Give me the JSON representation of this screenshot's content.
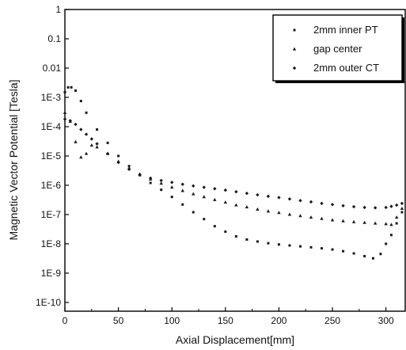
{
  "chart_data": {
    "type": "scatter",
    "title": "",
    "xlabel": "Axial Displacement[mm]",
    "ylabel": "Magnetic Vector Potential [Tesla]",
    "xlim": [
      0,
      318
    ],
    "ylim": [
      1e-11,
      1
    ],
    "y_scale": "log",
    "x_ticks": [
      0,
      50,
      100,
      150,
      200,
      250,
      300
    ],
    "x_tick_labels": [
      "0",
      "50",
      "100",
      "150",
      "200",
      "250",
      "300"
    ],
    "y_ticks": [
      1,
      0.1,
      0.01,
      0.001,
      0.0001,
      1e-05,
      1e-06,
      1e-07,
      1e-08,
      1e-09,
      1e-10
    ],
    "y_tick_labels": [
      "1",
      "0.1",
      "0.01",
      "1E-3",
      "1E-4",
      "1E-5",
      "1E-6",
      "1E-7",
      "1E-8",
      "1E-9",
      "1E-10"
    ],
    "grid": false,
    "legend_position": "top-right",
    "marker_color": "#1a1a1a",
    "series": [
      {
        "name": "2mm inner PT",
        "marker": "square",
        "x": [
          0,
          3,
          6,
          10,
          15,
          20,
          30,
          40,
          50,
          60,
          70,
          80,
          90,
          100,
          110,
          120,
          130,
          140,
          150,
          160,
          170,
          180,
          190,
          200,
          210,
          220,
          230,
          240,
          250,
          260,
          270,
          280,
          288,
          295,
          300,
          305,
          310,
          315
        ],
        "y": [
          0.0015,
          0.0022,
          0.0022,
          0.0017,
          0.00075,
          0.0003,
          8e-05,
          2.8e-05,
          1e-05,
          4.5e-06,
          2.2e-06,
          1.2e-06,
          7e-07,
          4e-07,
          2.2e-07,
          1.2e-07,
          7e-08,
          4e-08,
          2.6e-08,
          1.8e-08,
          1.4e-08,
          1.2e-08,
          1.05e-08,
          9.5e-09,
          8.8e-09,
          8.2e-09,
          7.6e-09,
          7e-09,
          6.4e-09,
          5.6e-09,
          4.7e-09,
          3.8e-09,
          3.2e-09,
          4.5e-09,
          1e-08,
          2e-08,
          5e-08,
          1.2e-07
        ]
      },
      {
        "name": "gap center",
        "marker": "triangle",
        "x": [
          0,
          5,
          10,
          15,
          20,
          25,
          30,
          40,
          50,
          60,
          70,
          80,
          90,
          100,
          110,
          120,
          130,
          140,
          150,
          160,
          170,
          180,
          190,
          200,
          210,
          220,
          230,
          240,
          250,
          260,
          270,
          280,
          290,
          300,
          305,
          310,
          315
        ],
        "y": [
          0.0003,
          0.00015,
          3e-05,
          9e-06,
          1.2e-05,
          2.3e-05,
          2e-05,
          1.2e-05,
          6.5e-06,
          3.8e-06,
          2.4e-06,
          1.6e-06,
          1.15e-06,
          8.5e-07,
          6.5e-07,
          5e-07,
          4e-07,
          3.2e-07,
          2.6e-07,
          2.1e-07,
          1.8e-07,
          1.5e-07,
          1.3e-07,
          1.15e-07,
          1e-07,
          9e-08,
          8e-08,
          7.2e-08,
          6.5e-08,
          6e-08,
          5.6e-08,
          5.3e-08,
          5e-08,
          4.8e-08,
          4.5e-08,
          8e-08,
          1.6e-07
        ]
      },
      {
        "name": "2mm outer CT",
        "marker": "diamond",
        "x": [
          0,
          5,
          10,
          15,
          20,
          25,
          30,
          40,
          50,
          60,
          70,
          80,
          90,
          100,
          110,
          120,
          130,
          140,
          150,
          160,
          170,
          180,
          190,
          200,
          210,
          220,
          230,
          240,
          250,
          260,
          270,
          280,
          290,
          300,
          305,
          310,
          315
        ],
        "y": [
          0.00018,
          0.00016,
          0.00012,
          8e-05,
          5.5e-05,
          3.8e-05,
          2.6e-05,
          1.2e-05,
          6e-06,
          3.5e-06,
          2.3e-06,
          1.75e-06,
          1.45e-06,
          1.25e-06,
          1.08e-06,
          9.5e-07,
          8.5e-07,
          7.6e-07,
          6.8e-07,
          6e-07,
          5.3e-07,
          4.7e-07,
          4.2e-07,
          3.8e-07,
          3.4e-07,
          3e-07,
          2.7e-07,
          2.4e-07,
          2.2e-07,
          2e-07,
          1.85e-07,
          1.75e-07,
          1.7e-07,
          1.75e-07,
          1.9e-07,
          2.1e-07,
          2.4e-07
        ]
      }
    ]
  }
}
